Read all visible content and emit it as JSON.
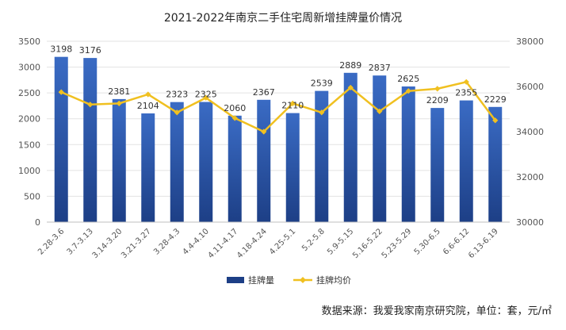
{
  "title": "2021-2022年南京二手住宅周新增挂牌量价情况",
  "source_note": "数据来源：我爱我家南京研究院，单位：套，元/㎡",
  "colors": {
    "bar_top": "#3a6bc4",
    "bar_bottom": "#1d3f86",
    "line": "#f0c020",
    "grid": "#e3e3e3",
    "text": "#555555"
  },
  "chart_data": {
    "type": "bar",
    "categories": [
      "2.28-3.6",
      "3.7-3.13",
      "3.14-3.20",
      "3.21-3.27",
      "3.28-4.3",
      "4.4-4.10",
      "4.11-4.17",
      "4.18-4.24",
      "4.25-5.1",
      "5.2-5.8",
      "5.9-5.15",
      "5.16-5.22",
      "5.23-5.29",
      "5.30-6.5",
      "6.6-6.12",
      "6.13-6.19"
    ],
    "series": [
      {
        "name": "挂牌量",
        "type": "bar",
        "axis": "left",
        "values": [
          3198,
          3176,
          2381,
          2104,
          2323,
          2325,
          2060,
          2367,
          2110,
          2539,
          2889,
          2837,
          2625,
          2209,
          2355,
          2229
        ]
      },
      {
        "name": "挂牌均价",
        "type": "line",
        "axis": "right",
        "values": [
          35750,
          35200,
          35250,
          35650,
          34850,
          35500,
          34600,
          34000,
          35250,
          34850,
          35950,
          34900,
          35800,
          35900,
          36200,
          34500
        ]
      }
    ],
    "y_left": {
      "min": 0,
      "max": 3500,
      "ticks": [
        0,
        500,
        1000,
        1500,
        2000,
        2500,
        3000,
        3500
      ]
    },
    "y_right": {
      "min": 30000,
      "max": 38000,
      "ticks": [
        30000,
        32000,
        34000,
        36000,
        38000
      ]
    },
    "grid": true,
    "legend_position": "bottom"
  }
}
